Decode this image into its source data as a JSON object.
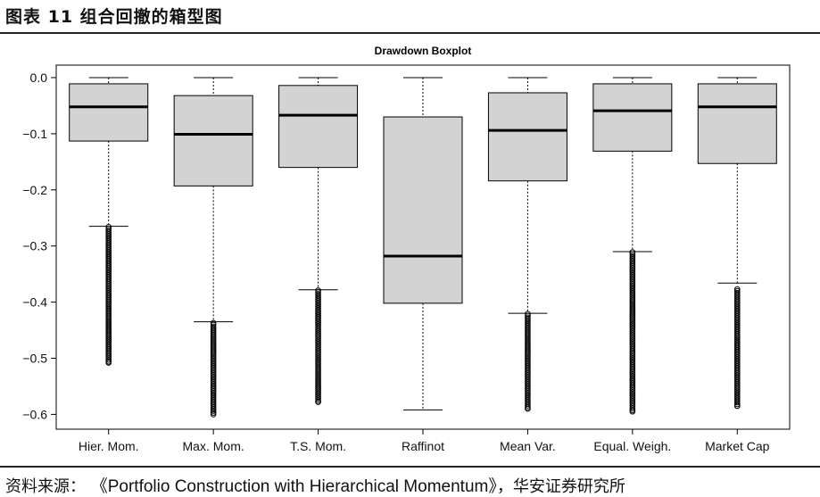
{
  "figure": {
    "title": "图表 11  组合回撤的箱型图",
    "source_prefix": "资料来源：",
    "source_ref": "《Portfolio Construction with Hierarchical Momentum》",
    "source_suffix": "，华安证券研究所"
  },
  "chart_data": {
    "type": "boxplot",
    "title": "Drawdown Boxplot",
    "xlabel": "",
    "ylabel": "",
    "ylim": [
      -0.62,
      0.015
    ],
    "yticks": [
      0.0,
      -0.1,
      -0.2,
      -0.3,
      -0.4,
      -0.5,
      -0.6
    ],
    "ytick_labels": [
      "0.0",
      "−0.1",
      "−0.2",
      "−0.3",
      "−0.4",
      "−0.5",
      "−0.6"
    ],
    "grid": false,
    "box_color": "#d3d3d3",
    "line_color": "#000000",
    "categories": [
      "Hier. Mom.",
      "Max. Mom.",
      "T.S. Mom.",
      "Raffinot",
      "Mean Var.",
      "Equal. Weigh.",
      "Market Cap"
    ],
    "boxes": [
      {
        "name": "Hier. Mom.",
        "whisker_high": 0.0,
        "q3": -0.011,
        "median": -0.052,
        "q1": -0.113,
        "whisker_low": -0.265,
        "outliers_from": -0.266,
        "outliers_to": -0.508
      },
      {
        "name": "Max. Mom.",
        "whisker_high": 0.0,
        "q3": -0.032,
        "median": -0.101,
        "q1": -0.193,
        "whisker_low": -0.435,
        "outliers_from": -0.437,
        "outliers_to": -0.6
      },
      {
        "name": "T.S. Mom.",
        "whisker_high": 0.0,
        "q3": -0.014,
        "median": -0.067,
        "q1": -0.16,
        "whisker_low": -0.378,
        "outliers_from": -0.379,
        "outliers_to": -0.578
      },
      {
        "name": "Raffinot",
        "whisker_high": 0.0,
        "q3": -0.07,
        "median": -0.318,
        "q1": -0.402,
        "whisker_low": -0.592,
        "outliers_from": null,
        "outliers_to": null
      },
      {
        "name": "Mean Var.",
        "whisker_high": 0.0,
        "q3": -0.027,
        "median": -0.094,
        "q1": -0.184,
        "whisker_low": -0.42,
        "outliers_from": -0.421,
        "outliers_to": -0.59
      },
      {
        "name": "Equal. Weigh.",
        "whisker_high": 0.0,
        "q3": -0.011,
        "median": -0.059,
        "q1": -0.131,
        "whisker_low": -0.31,
        "outliers_from": -0.311,
        "outliers_to": -0.595
      },
      {
        "name": "Market Cap",
        "whisker_high": 0.0,
        "q3": -0.011,
        "median": -0.052,
        "q1": -0.153,
        "whisker_low": -0.366,
        "outliers_from": -0.377,
        "outliers_to": -0.585
      }
    ]
  }
}
